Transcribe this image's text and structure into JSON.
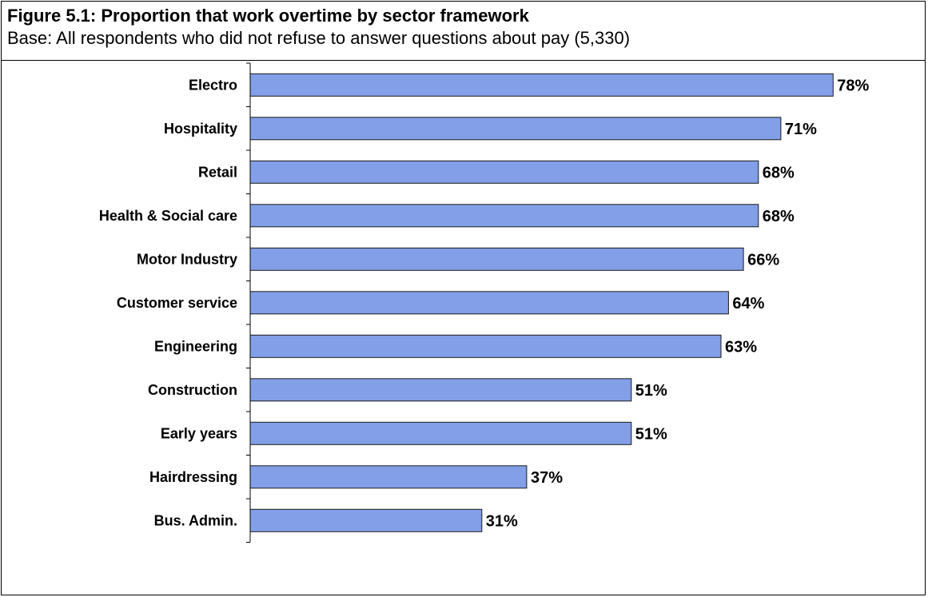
{
  "figure": {
    "title": "Figure 5.1:  Proportion that work overtime by sector framework",
    "subtitle": "Base: All respondents who did not refuse to answer questions about pay (5,330)"
  },
  "colors": {
    "bar_fill": "#829fe7",
    "bar_stroke": "#1a1a1a",
    "axis": "#000000"
  },
  "chart_data": {
    "type": "bar",
    "orientation": "horizontal",
    "title": "Figure 5.1:  Proportion that work overtime by sector framework",
    "subtitle": "Base: All respondents who did not refuse to answer questions about pay (5,330)",
    "xlabel": "",
    "ylabel": "",
    "unit": "%",
    "xlim": [
      0,
      80
    ],
    "grid": false,
    "legend": "none",
    "categories": [
      "Electro",
      "Hospitality",
      "Retail",
      "Health & Social care",
      "Motor Industry",
      "Customer service",
      "Engineering",
      "Construction",
      "Early years",
      "Hairdressing",
      "Bus. Admin."
    ],
    "values": [
      78,
      71,
      68,
      68,
      66,
      64,
      63,
      51,
      51,
      37,
      31
    ],
    "value_labels": [
      "78%",
      "71%",
      "68%",
      "68%",
      "66%",
      "64%",
      "63%",
      "51%",
      "51%",
      "37%",
      "31%"
    ]
  }
}
